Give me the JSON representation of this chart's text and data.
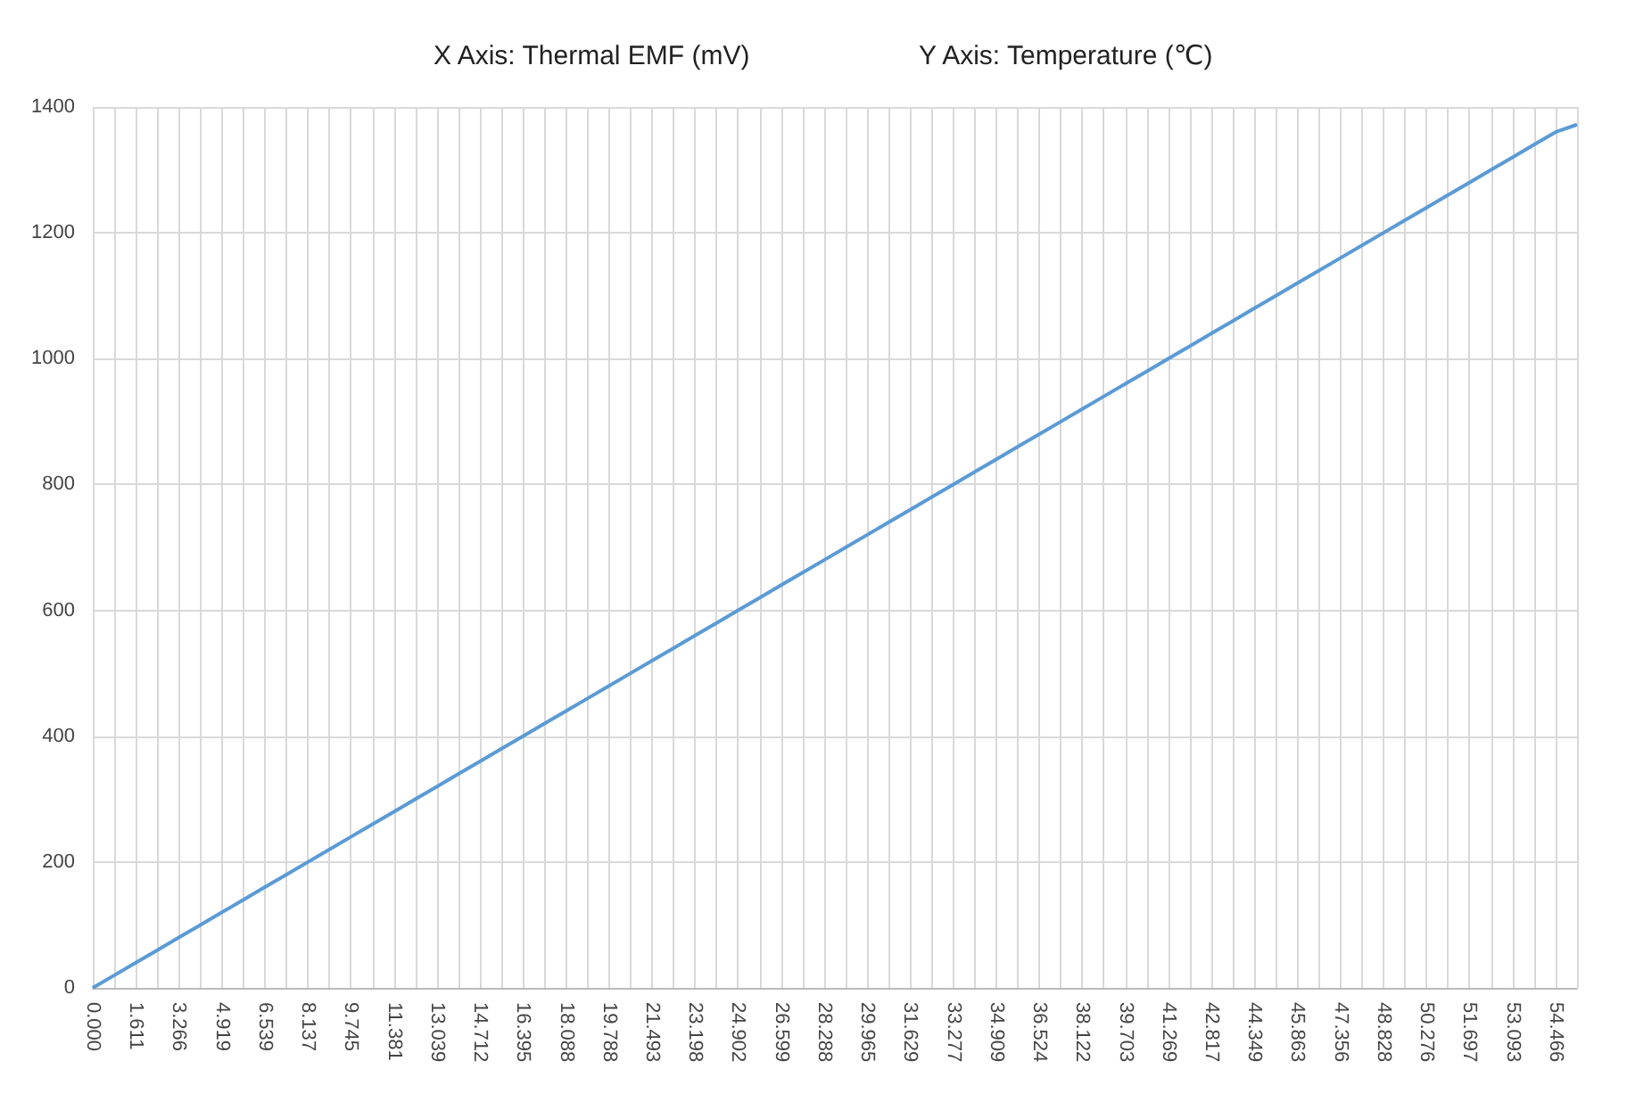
{
  "chart_data": {
    "type": "line",
    "xlabel": "X Axis: Thermal EMF (mV)",
    "ylabel": "Y Axis: Temperature (℃)",
    "categories": [
      "0.000",
      null,
      "1.611",
      null,
      "3.266",
      null,
      "4.919",
      null,
      "6.539",
      null,
      "8.137",
      null,
      "9.745",
      null,
      "11.381",
      null,
      "13.039",
      null,
      "14.712",
      null,
      "16.395",
      null,
      "18.088",
      null,
      "19.788",
      null,
      "21.493",
      null,
      "23.198",
      null,
      "24.902",
      null,
      "26.599",
      null,
      "28.288",
      null,
      "29.965",
      null,
      "31.629",
      null,
      "33.277",
      null,
      "34.909",
      null,
      "36.524",
      null,
      "38.122",
      null,
      "39.703",
      null,
      "41.269",
      null,
      "42.817",
      null,
      "44.349",
      null,
      "45.863",
      null,
      "47.356",
      null,
      "48.828",
      null,
      "50.276",
      null,
      "51.697",
      null,
      "53.093",
      null,
      "54.466",
      null
    ],
    "series": [
      {
        "color": "#5b9bd5",
        "values": [
          0,
          20,
          40,
          60,
          80,
          100,
          120,
          140,
          160,
          180,
          200,
          220,
          240,
          260,
          280,
          300,
          320,
          340,
          360,
          380,
          400,
          420,
          440,
          460,
          480,
          500,
          520,
          540,
          560,
          580,
          600,
          620,
          640,
          660,
          680,
          700,
          720,
          740,
          760,
          780,
          800,
          820,
          840,
          860,
          880,
          900,
          920,
          940,
          960,
          980,
          1000,
          1020,
          1040,
          1060,
          1080,
          1100,
          1120,
          1140,
          1160,
          1180,
          1200,
          1220,
          1240,
          1260,
          1280,
          1300,
          1320,
          1340,
          1360,
          1372
        ]
      }
    ],
    "ylim": [
      0,
      1400
    ],
    "yticks": [
      0,
      200,
      400,
      600,
      800,
      1000,
      1200,
      1400
    ],
    "grid": true,
    "marker": "none",
    "line_style": "solid"
  }
}
